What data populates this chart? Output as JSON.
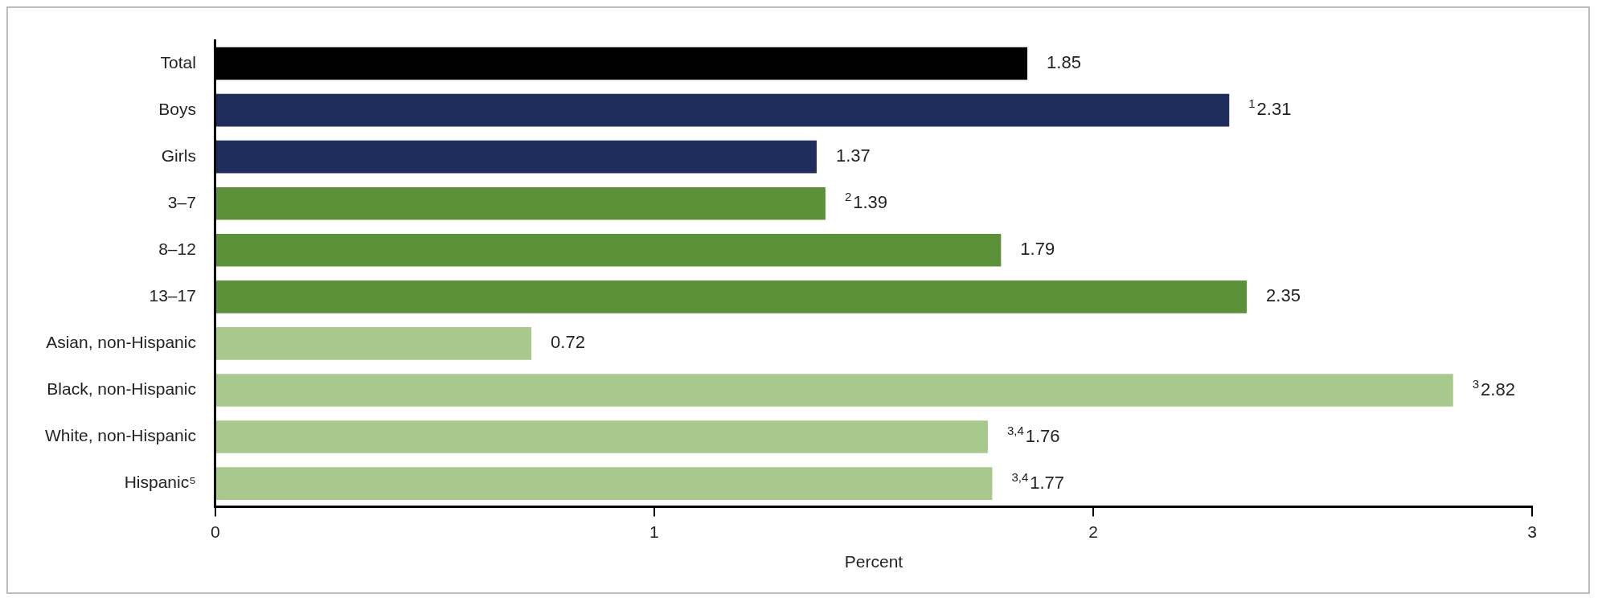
{
  "chart_data": {
    "type": "bar",
    "orientation": "horizontal",
    "xlabel": "Percent",
    "categories": [
      "Total",
      "Boys",
      "Girls",
      "3–7",
      "8–12",
      "13–17",
      "Asian, non-Hispanic",
      "Black, non-Hispanic",
      "White, non-Hispanic",
      "Hispanic⁵"
    ],
    "values": [
      1.85,
      2.31,
      1.37,
      1.39,
      1.79,
      2.35,
      0.72,
      2.82,
      1.76,
      1.77
    ],
    "colors": [
      "#000000",
      "#1f2d5c",
      "#1f2d5c",
      "#5b9139",
      "#5b9139",
      "#5b9139",
      "#a8c98c",
      "#a8c98c",
      "#a8c98c",
      "#a8c98c"
    ],
    "value_labels": [
      "1.85",
      "$^{1}$2.31",
      "1.37",
      "$^{2}$1.39",
      "1.79",
      "2.35",
      "0.72",
      "$^{3}$2.82",
      "$^{3,4}$1.76",
      "$^{3,4}$1.77"
    ],
    "xlim": [
      0,
      3
    ],
    "xticks": [
      0,
      1,
      2,
      3
    ],
    "grid": false,
    "legend": false
  }
}
